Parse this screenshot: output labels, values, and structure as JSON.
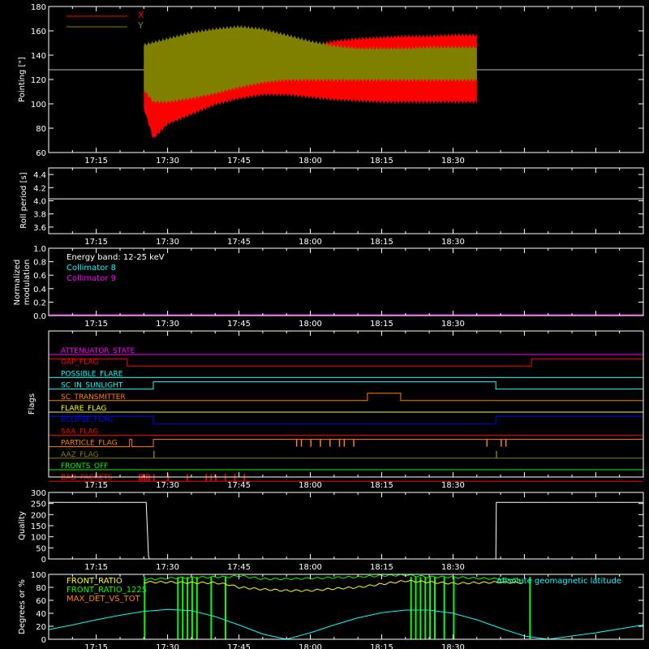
{
  "time_ticks": [
    "17:15",
    "17:30",
    "17:45",
    "18:00",
    "18:15",
    "18:30"
  ],
  "colors": {
    "background": "#000000",
    "axes": "#ffffff",
    "red": "#ff0000",
    "olive": "#808000",
    "cyan": "#00ffff",
    "magenta": "#ff00ff",
    "orange": "#ff8000",
    "yellow": "#ffff00",
    "blue": "#0000ff",
    "green": "#00ff00",
    "gray": "#c0c0c0"
  },
  "chart_data": [
    {
      "type": "line",
      "panel": "pointing",
      "ylabel": "Pointing [\"]",
      "ylim": [
        60,
        180
      ],
      "yticks": [
        "60",
        "80",
        "100",
        "120",
        "140",
        "160",
        "180"
      ],
      "xlim_minutes": [
        0,
        125
      ],
      "reference_line": 128,
      "legend": [
        "X",
        "Y"
      ],
      "series": [
        {
          "name": "X",
          "color": "#ff0000",
          "x_minutes": [
            20,
            22,
            25,
            30,
            35,
            40,
            45,
            50,
            55,
            60,
            65,
            70,
            75,
            80,
            85,
            90
          ],
          "upper": [
            150,
            145,
            140,
            137,
            135,
            138,
            141,
            145,
            149,
            153,
            155,
            156,
            157,
            157,
            158,
            158
          ],
          "lower": [
            95,
            70,
            82,
            90,
            98,
            103,
            106,
            106,
            104,
            102,
            101,
            100,
            100,
            100,
            100,
            100
          ]
        },
        {
          "name": "Y",
          "color": "#808000",
          "x_minutes": [
            20,
            22,
            25,
            30,
            35,
            40,
            45,
            50,
            55,
            60,
            65,
            70,
            75,
            80,
            85,
            90
          ],
          "upper": [
            150,
            152,
            155,
            160,
            163,
            165,
            163,
            158,
            153,
            149,
            147,
            147,
            147,
            148,
            148,
            148
          ],
          "lower": [
            110,
            100,
            100,
            103,
            107,
            112,
            116,
            118,
            118,
            118,
            118,
            118,
            118,
            118,
            118,
            118
          ]
        }
      ]
    },
    {
      "type": "line",
      "panel": "roll_period",
      "ylabel": "Roll period [s]",
      "ylim": [
        3.5,
        4.5
      ],
      "yticks": [
        "3.6",
        "3.8",
        "4.0",
        "4.2",
        "4.4"
      ],
      "series": [
        {
          "color": "#ffffff",
          "x_minutes": [
            0,
            125
          ],
          "values": [
            4.03,
            4.03
          ]
        }
      ]
    },
    {
      "type": "line",
      "panel": "modulation",
      "ylabel": "Normalized modulation",
      "ylabel_lines": [
        "Normalized",
        "modulation"
      ],
      "ylim": [
        0,
        1
      ],
      "yticks": [
        "0.0",
        "0.2",
        "0.4",
        "0.6",
        "0.8",
        "1.0"
      ],
      "annotations": [
        {
          "text": "Energy band: 12-25 keV",
          "color": "#ffffff"
        },
        {
          "text": "Collimator 8",
          "color": "#00ffff"
        },
        {
          "text": "Collimator 9",
          "color": "#ff00ff"
        }
      ],
      "series": [
        {
          "name": "Collimator 9",
          "color": "#ff00ff",
          "x_minutes": [
            0,
            125
          ],
          "values": [
            0,
            0
          ]
        }
      ]
    },
    {
      "type": "line",
      "panel": "flags",
      "ylabel": "Flags",
      "flags": [
        {
          "label": "ATTENUATOR_STATE",
          "color": "#ff00ff",
          "steps": []
        },
        {
          "label": "GAP_FLAG",
          "color": "#ff0000",
          "steps": [
            [
              0,
              1
            ],
            [
              16.5,
              0
            ],
            [
              101.5,
              1
            ]
          ]
        },
        {
          "label": "POSSIBLE_FLARE",
          "color": "#00ffff",
          "steps": []
        },
        {
          "label": "SC_IN_SUNLIGHT",
          "color": "#00ffff",
          "steps": [
            [
              0,
              0
            ],
            [
              22,
              1
            ],
            [
              94,
              0
            ]
          ]
        },
        {
          "label": "SC_TRANSMITTER",
          "color": "#ff8000",
          "steps": [
            [
              0,
              0
            ],
            [
              67,
              1
            ],
            [
              74,
              0
            ]
          ]
        },
        {
          "label": "FLARE_FLAG",
          "color": "#ffff00",
          "steps": []
        },
        {
          "label": "ECLIPSE_FLAG",
          "color": "#0000ff",
          "steps": [
            [
              0,
              1
            ],
            [
              22,
              0
            ],
            [
              94,
              1
            ]
          ]
        },
        {
          "label": "SAA_FLAG",
          "color": "#ff0000",
          "steps": []
        },
        {
          "label": "PARTICLE_FLAG",
          "color": "#ff8000",
          "steps": [
            [
              0,
              0
            ],
            [
              17,
              1
            ],
            [
              17.5,
              0
            ],
            [
              22,
              1
            ]
          ],
          "spikes": [
            52,
            53,
            55,
            57,
            59,
            61,
            62,
            64,
            92,
            95,
            96
          ]
        },
        {
          "label": "AAZ_FLAG",
          "color": "#808000",
          "steps": [
            [
              0,
              0
            ]
          ],
          "spikes": [
            22,
            94
          ]
        },
        {
          "label": "FRONTS_OFF",
          "color": "#00ff00",
          "steps": []
        },
        {
          "label": "BAD_PACKETS",
          "color": "#ff0000",
          "steps": [
            [
              0,
              0
            ]
          ],
          "spikes": [
            19,
            19.5,
            20,
            20.5,
            21,
            22,
            25,
            29,
            33,
            34,
            35,
            37,
            39,
            41
          ]
        }
      ]
    },
    {
      "type": "line",
      "panel": "quality",
      "ylabel": "Quality",
      "ylim": [
        0,
        300
      ],
      "yticks": [
        "0",
        "50",
        "100",
        "150",
        "200",
        "250",
        "300"
      ],
      "series": [
        {
          "color": "#ffffff",
          "x_minutes": [
            0,
            20.5,
            21,
            21.2,
            94,
            94.1,
            125
          ],
          "values": [
            255,
            255,
            10,
            0,
            0,
            255,
            255
          ]
        }
      ]
    },
    {
      "type": "line",
      "panel": "ratios",
      "ylabel": "Degrees or %",
      "ylim": [
        0,
        100
      ],
      "yticks": [
        "0",
        "20",
        "40",
        "60",
        "80",
        "100"
      ],
      "legend": [
        "FRONT_RATIO",
        "FRONT_RATIO_1225",
        "MAX_DET_VS_TOT"
      ],
      "annotation": "Absolute geomagnetic latitude",
      "series": [
        {
          "name": "Absolute geomagnetic latitude",
          "color": "#00ffff",
          "x_minutes": [
            0,
            5,
            10,
            15,
            20,
            25,
            30,
            35,
            40,
            45,
            50,
            55,
            60,
            65,
            70,
            75,
            80,
            85,
            90,
            95,
            100,
            105,
            110,
            115,
            120,
            125
          ],
          "values": [
            15,
            22,
            30,
            37,
            43,
            46,
            44,
            35,
            22,
            8,
            0,
            10,
            22,
            33,
            41,
            45,
            45,
            40,
            30,
            17,
            5,
            0,
            5,
            10,
            16,
            22
          ]
        },
        {
          "name": "FRONT_RATIO",
          "color": "#00ff00",
          "x_minutes": [
            20,
            25,
            30,
            35,
            38,
            40,
            45,
            50,
            55,
            60,
            65,
            70,
            75,
            80,
            85,
            90,
            95,
            100
          ],
          "values": [
            92,
            94,
            95,
            96,
            96,
            98,
            93,
            93,
            94,
            95,
            96,
            98,
            99,
            96,
            96,
            94,
            93,
            92
          ]
        },
        {
          "name": "FRONT_RATIO_1225",
          "color": "#ffff00",
          "x_minutes": [
            20,
            25,
            30,
            35,
            38,
            40,
            45,
            50,
            55,
            60,
            65,
            70,
            75,
            80,
            85,
            90,
            95,
            100
          ],
          "values": [
            88,
            88,
            87,
            87,
            84,
            80,
            77,
            75,
            75,
            78,
            80,
            85,
            90,
            88,
            86,
            87,
            88,
            87
          ]
        },
        {
          "name": "MAX_DET_VS_TOT",
          "color": "#ff8000",
          "x_minutes": [
            0,
            125
          ],
          "values": [
            0,
            0
          ]
        }
      ],
      "green_dropouts_minutes": [
        20,
        27,
        28,
        29,
        30,
        31,
        34,
        37,
        76,
        77,
        78,
        79,
        80,
        81,
        83,
        85,
        101
      ]
    }
  ]
}
